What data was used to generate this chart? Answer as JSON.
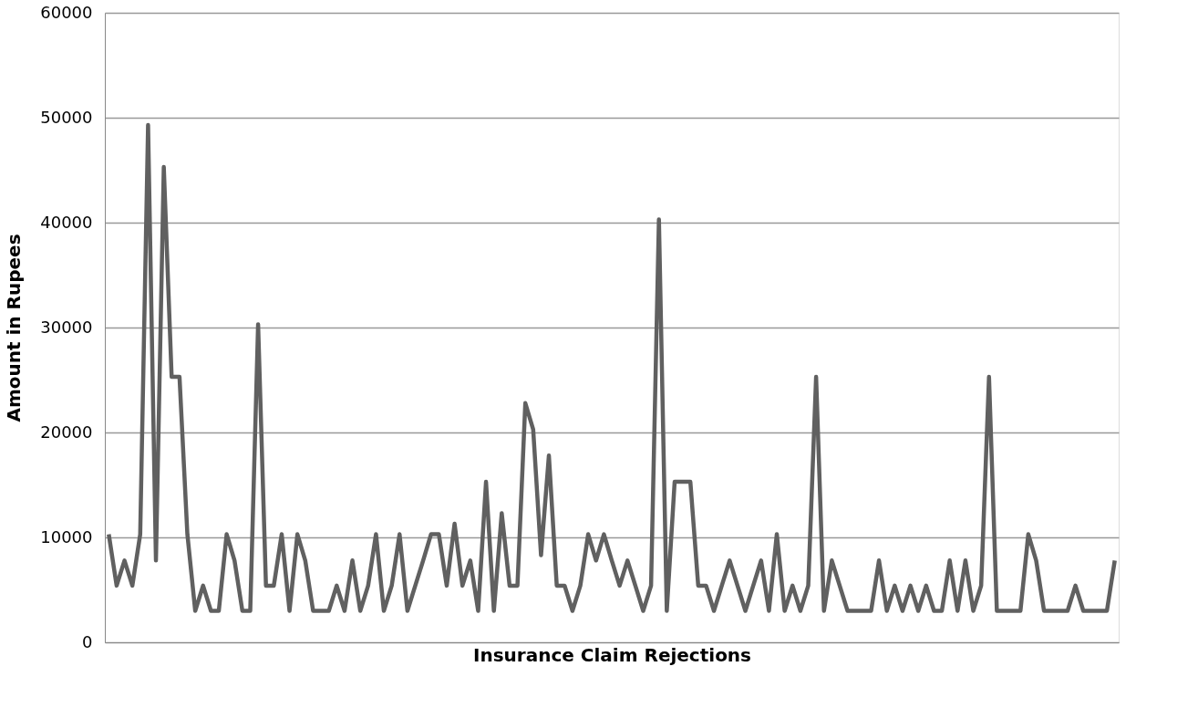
{
  "chart_data": {
    "type": "line",
    "xlabel": "Insurance Claim Rejections",
    "ylabel": "Amount in Rupees",
    "categories": [
      null,
      null,
      null,
      null,
      null,
      null,
      null,
      null,
      null,
      null,
      null,
      null,
      null,
      null,
      null,
      null,
      null,
      null,
      null,
      null,
      null,
      null,
      null,
      null,
      null,
      null,
      null,
      null,
      null,
      null,
      null,
      null,
      null,
      null,
      null,
      null,
      null,
      null,
      null,
      null,
      null,
      null,
      null,
      null,
      null,
      null,
      null,
      null,
      null,
      null,
      null,
      null,
      null,
      null,
      null,
      null,
      null,
      null,
      null,
      null,
      null,
      null,
      null,
      null,
      null,
      null,
      null,
      null,
      null,
      null,
      null,
      null,
      null,
      null,
      null,
      null,
      null,
      null,
      null,
      null,
      null,
      null,
      null,
      null,
      null,
      null,
      null,
      null,
      null,
      null,
      null,
      null,
      null,
      null,
      null,
      null,
      null,
      null,
      null,
      null,
      null,
      null,
      null,
      null,
      null,
      null,
      null,
      null,
      null,
      null,
      null,
      null,
      null,
      null,
      null,
      null,
      null,
      null,
      null,
      null,
      null,
      null,
      null,
      null,
      null,
      null,
      null,
      null,
      null
    ],
    "series": [
      {
        "color": "#606060",
        "values": [
          10300,
          5400,
          7800,
          5400,
          10300,
          49300,
          7800,
          45300,
          25300,
          25300,
          10300,
          3000,
          5400,
          3000,
          3000,
          10300,
          7800,
          3000,
          3000,
          30300,
          5400,
          5400,
          10300,
          3000,
          10300,
          7800,
          3000,
          3000,
          3000,
          5400,
          3000,
          7800,
          3000,
          5400,
          10300,
          3000,
          5400,
          10300,
          3000,
          5400,
          7800,
          10300,
          10300,
          5400,
          11300,
          5400,
          7800,
          3000,
          15300,
          3000,
          12300,
          5400,
          5400,
          22800,
          20300,
          8300,
          17800,
          5400,
          5400,
          3000,
          5400,
          10300,
          7800,
          10300,
          7800,
          5400,
          7800,
          5400,
          3000,
          5400,
          40300,
          3000,
          15300,
          15300,
          15300,
          5400,
          5400,
          3000,
          5400,
          7800,
          5400,
          3000,
          5400,
          7800,
          3000,
          10300,
          3000,
          5400,
          3000,
          5400,
          25300,
          3000,
          7800,
          5400,
          3000,
          3000,
          3000,
          3000,
          7800,
          3000,
          5400,
          3000,
          5400,
          3000,
          5400,
          3000,
          3000,
          7800,
          3000,
          7800,
          3000,
          5400,
          25300,
          3000,
          3000,
          3000,
          3000,
          10300,
          7800,
          3000,
          3000,
          3000,
          3000,
          5400,
          3000,
          3000,
          3000,
          3000,
          7800
        ]
      }
    ],
    "ylim": [
      0,
      60000
    ],
    "yticks": [
      0,
      10000,
      20000,
      30000,
      40000,
      50000,
      60000
    ],
    "grid": "y",
    "marker": "none",
    "line_style": "solid",
    "tick_labels": "y"
  }
}
